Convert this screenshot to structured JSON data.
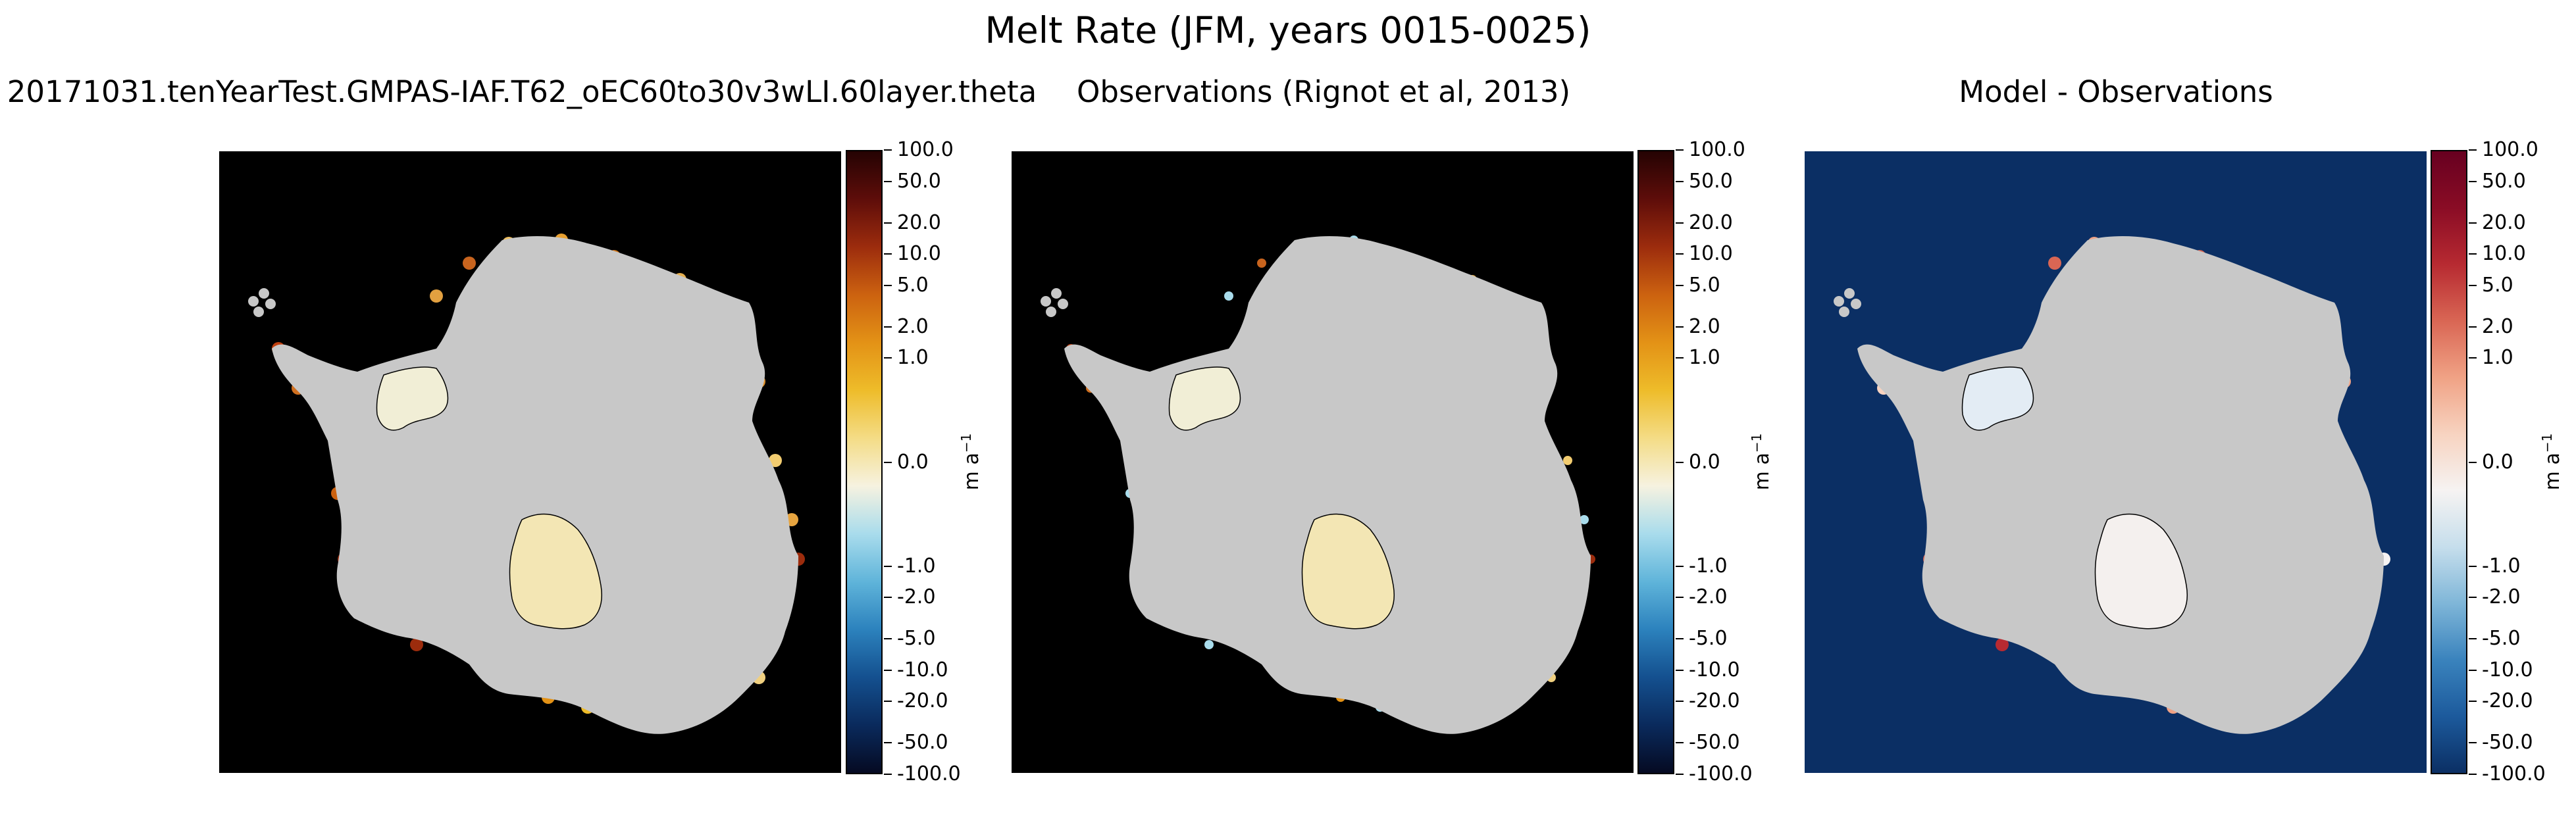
{
  "figure": {
    "title": "Melt Rate (JFM, years 0015-0025)"
  },
  "chart_data": [
    {
      "type": "heatmap",
      "title": "20171031.tenYearTest.GMPAS-IAF.T62_oEC60to30v3wLI.60layer.theta",
      "background_color": "#000000",
      "land_color": "#c8c8c8",
      "colormap": "ice-fire (dark blue - cyan - white - yellow - orange - dark red)",
      "colorbar": {
        "label": "m a",
        "label_exponent": "−1",
        "scale": "symmetric log",
        "range": [
          -100.0,
          100.0
        ],
        "ticks": [
          "100.0",
          "50.0",
          "20.0",
          "10.0",
          "5.0",
          "2.0",
          "1.0",
          "0.0",
          "-1.0",
          "-2.0",
          "-5.0",
          "-10.0",
          "-20.0",
          "-50.0",
          "-100.0"
        ],
        "tick_values": [
          100,
          50,
          20,
          10,
          5,
          2,
          1,
          0,
          -1,
          -2,
          -5,
          -10,
          -20,
          -50,
          -100
        ]
      }
    },
    {
      "type": "heatmap",
      "title": "Observations (Rignot et al, 2013)",
      "background_color": "#000000",
      "land_color": "#c8c8c8",
      "colormap": "ice-fire (dark blue - cyan - white - yellow - orange - dark red)",
      "colorbar": {
        "label": "m a",
        "label_exponent": "−1",
        "scale": "symmetric log",
        "range": [
          -100.0,
          100.0
        ],
        "ticks": [
          "100.0",
          "50.0",
          "20.0",
          "10.0",
          "5.0",
          "2.0",
          "1.0",
          "0.0",
          "-1.0",
          "-2.0",
          "-5.0",
          "-10.0",
          "-20.0",
          "-50.0",
          "-100.0"
        ],
        "tick_values": [
          100,
          50,
          20,
          10,
          5,
          2,
          1,
          0,
          -1,
          -2,
          -5,
          -10,
          -20,
          -50,
          -100
        ]
      }
    },
    {
      "type": "heatmap",
      "title": "Model - Observations",
      "background_color": "#0b2f64",
      "land_color": "#c8c8c8",
      "colormap": "red-blue diverging (dark blue - white - dark red)",
      "colorbar": {
        "label": "m a",
        "label_exponent": "−1",
        "scale": "symmetric log",
        "range": [
          -100.0,
          100.0
        ],
        "ticks": [
          "100.0",
          "50.0",
          "20.0",
          "10.0",
          "5.0",
          "2.0",
          "1.0",
          "0.0",
          "-1.0",
          "-2.0",
          "-5.0",
          "-10.0",
          "-20.0",
          "-50.0",
          "-100.0"
        ],
        "tick_values": [
          100,
          50,
          20,
          10,
          5,
          2,
          1,
          0,
          -1,
          -2,
          -5,
          -10,
          -20,
          -50,
          -100
        ]
      }
    }
  ]
}
